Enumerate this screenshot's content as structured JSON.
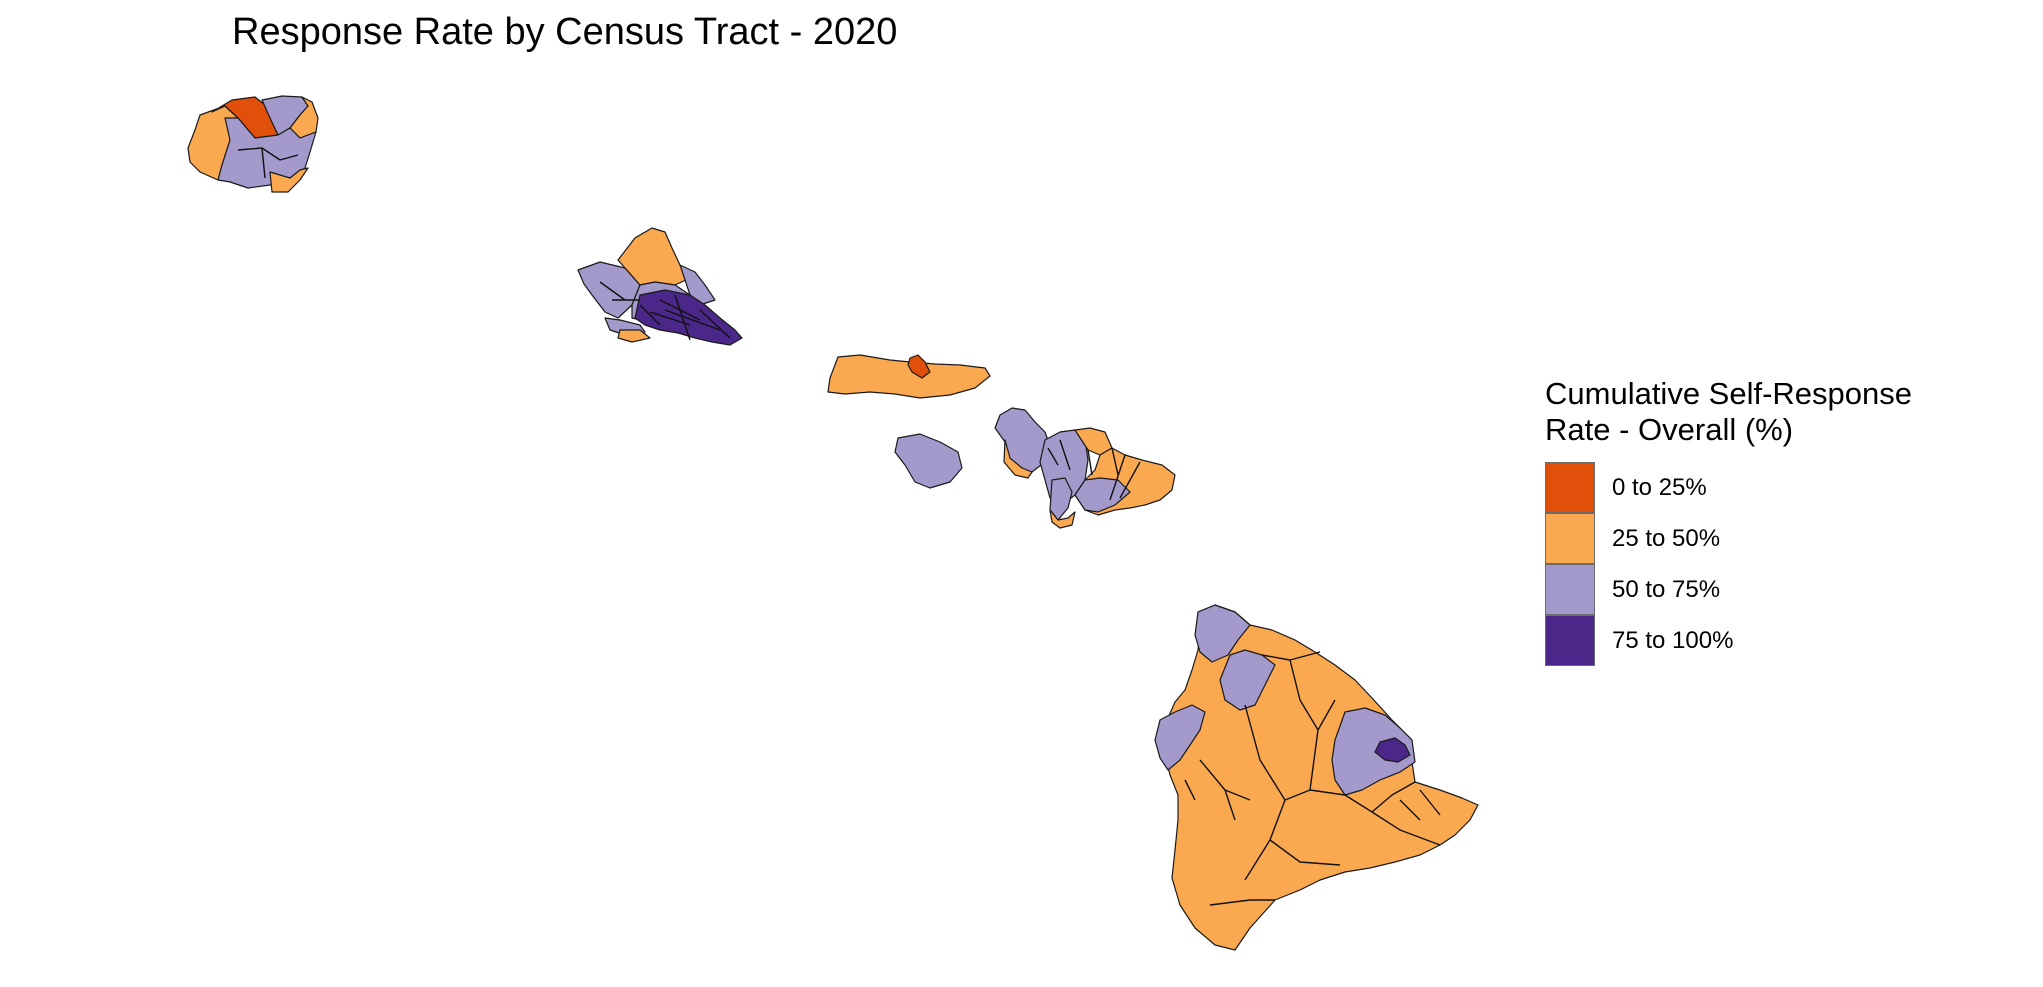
{
  "title": "Response Rate by Census Tract - 2020",
  "legend": {
    "title_line1": "Cumulative Self-Response",
    "title_line2": "Rate - Overall (%)",
    "items": [
      {
        "label": "0 to 25%",
        "color": "#E0500A"
      },
      {
        "label": "25 to 50%",
        "color": "#FBA950"
      },
      {
        "label": "50 to 75%",
        "color": "#A399CB"
      },
      {
        "label": "75 to 100%",
        "color": "#4B2789"
      }
    ]
  },
  "colors": {
    "c0_25": "#E0500A",
    "c25_50": "#FBA950",
    "c50_75": "#A399CB",
    "c75_100": "#4B2789",
    "border": "#1a1a1a"
  }
}
